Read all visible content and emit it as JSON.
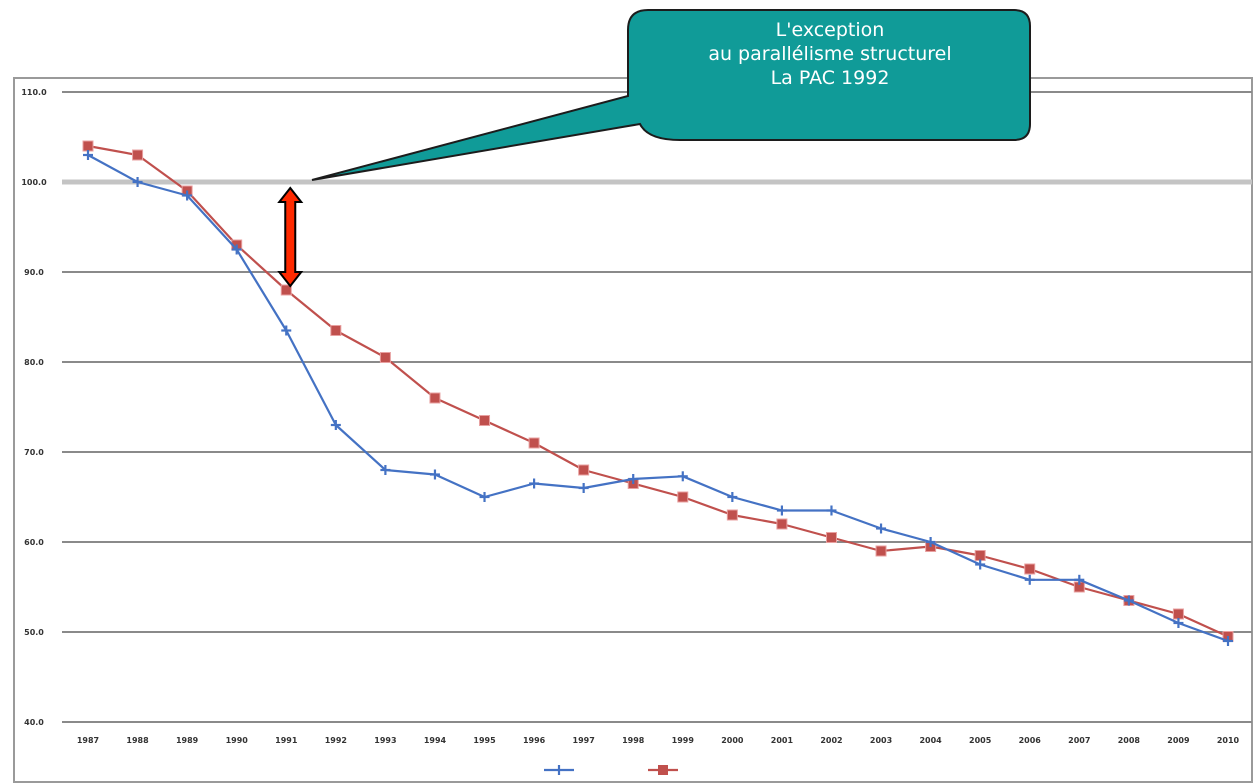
{
  "callout": {
    "lines": [
      "L'exception",
      "au parallélisme structurel",
      "La PAC 1992"
    ]
  },
  "chart_data": {
    "type": "line",
    "title": "",
    "xlabel": "",
    "ylabel": "",
    "ylim": [
      40,
      110
    ],
    "yticks": [
      40,
      50,
      60,
      70,
      80,
      90,
      100,
      110
    ],
    "ytick_labels": [
      "40.0",
      "50.0",
      "60.0",
      "70.0",
      "80.0",
      "90.0",
      "100.0",
      "110.0"
    ],
    "categories": [
      "1987",
      "1988",
      "1989",
      "1990",
      "1991",
      "1992",
      "1993",
      "1994",
      "1995",
      "1996",
      "1997",
      "1998",
      "1999",
      "2000",
      "2001",
      "2002",
      "2003",
      "2004",
      "2005",
      "2006",
      "2007",
      "2008",
      "2009",
      "2010"
    ],
    "series": [
      {
        "name": "",
        "color": "#4472c4",
        "marker": "plus",
        "values": [
          103.0,
          100.0,
          98.5,
          92.5,
          83.5,
          73.0,
          68.0,
          67.5,
          65.0,
          66.5,
          66.0,
          67.0,
          67.3,
          65.0,
          63.5,
          63.5,
          61.5,
          60.0,
          57.5,
          55.8,
          55.8,
          53.5,
          51.0,
          49.0
        ]
      },
      {
        "name": "",
        "color": "#c0504d",
        "marker": "square",
        "values": [
          104.0,
          103.0,
          99.0,
          93.0,
          88.0,
          83.5,
          80.5,
          76.0,
          73.5,
          71.0,
          68.0,
          66.5,
          65.0,
          63.0,
          62.0,
          60.5,
          59.0,
          59.5,
          58.5,
          57.0,
          55.0,
          53.5,
          52.0,
          49.5
        ]
      }
    ],
    "grid": true,
    "legend_position": "bottom-center",
    "annotation": {
      "type": "double-arrow",
      "category": "1991",
      "from": 88,
      "to": 100,
      "color": "#ff2a00"
    }
  }
}
